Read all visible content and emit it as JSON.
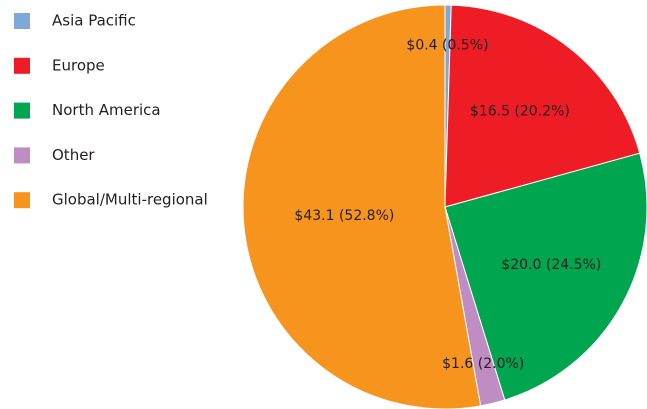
{
  "chart_data": {
    "type": "pie",
    "categories": [
      "Asia Pacific",
      "Europe",
      "North America",
      "Other",
      "Global/Multi-regional"
    ],
    "values": [
      0.4,
      16.5,
      20.0,
      1.6,
      43.1
    ],
    "value_labels": [
      "$0.4 (0.5%)",
      "$16.5 (20.2%)",
      "$20.0 (24.5%)",
      "$1.6 (2.0%)",
      "$43.1 (52.8%)"
    ],
    "colors": [
      "#7fa7d8",
      "#ee1c25",
      "#00a54f",
      "#c08cc4",
      "#f7941d"
    ]
  }
}
